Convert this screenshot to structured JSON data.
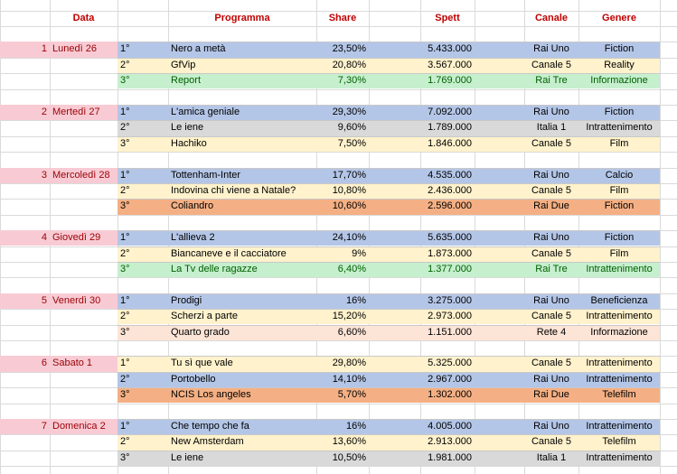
{
  "header": [
    "Data",
    "Programma",
    "Share",
    "Spett",
    "Canale",
    "Genere"
  ],
  "days": [
    {
      "num": "1",
      "day": "Lunedì 26",
      "rows": [
        {
          "rank": "1°",
          "program": "Nero a metà",
          "share": "23,50%",
          "spett": "5.433.000",
          "channel": "Rai Uno",
          "genre": "Fiction",
          "fill": "#b4c6e7",
          "ink": "#000000"
        },
        {
          "rank": "2°",
          "program": "GfVip",
          "share": "20,80%",
          "spett": "3.567.000",
          "channel": "Canale 5",
          "genre": "Reality",
          "fill": "#fff2cc",
          "ink": "#000000"
        },
        {
          "rank": "3°",
          "program": "Report",
          "share": "7,30%",
          "spett": "1.769.000",
          "channel": "Rai Tre",
          "genre": "Informazione",
          "fill": "#c6efce",
          "ink": "#006100"
        }
      ]
    },
    {
      "num": "2",
      "day": "Mertedì 27",
      "rows": [
        {
          "rank": "1°",
          "program": "L'amica geniale",
          "share": "29,30%",
          "spett": "7.092.000",
          "channel": "Rai Uno",
          "genre": "Fiction",
          "fill": "#b4c6e7",
          "ink": "#000000"
        },
        {
          "rank": "2°",
          "program": "Le iene",
          "share": "9,60%",
          "spett": "1.789.000",
          "channel": "Italia 1",
          "genre": "Intrattenimento",
          "fill": "#d9d9d9",
          "ink": "#000000"
        },
        {
          "rank": "3°",
          "program": "Hachiko",
          "share": "7,50%",
          "spett": "1.846.000",
          "channel": "Canale 5",
          "genre": "Film",
          "fill": "#fff2cc",
          "ink": "#000000"
        }
      ]
    },
    {
      "num": "3",
      "day": "Mercoledì 28",
      "rows": [
        {
          "rank": "1°",
          "program": "Tottenham-Inter",
          "share": "17,70%",
          "spett": "4.535.000",
          "channel": "Rai Uno",
          "genre": "Calcio",
          "fill": "#b4c6e7",
          "ink": "#000000"
        },
        {
          "rank": "2°",
          "program": "Indovina chi viene a Natale?",
          "share": "10,80%",
          "spett": "2.436.000",
          "channel": "Canale 5",
          "genre": "Film",
          "fill": "#fff2cc",
          "ink": "#000000"
        },
        {
          "rank": "3°",
          "program": "Coliandro",
          "share": "10,60%",
          "spett": "2.596.000",
          "channel": "Rai Due",
          "genre": "Fiction",
          "fill": "#f4b084",
          "ink": "#000000"
        }
      ]
    },
    {
      "num": "4",
      "day": "Giovedì 29",
      "rows": [
        {
          "rank": "1°",
          "program": "L'allieva 2",
          "share": "24,10%",
          "spett": "5.635.000",
          "channel": "Rai Uno",
          "genre": "Fiction",
          "fill": "#b4c6e7",
          "ink": "#000000"
        },
        {
          "rank": "2°",
          "program": "Biancaneve e il cacciatore",
          "share": "9%",
          "spett": "1.873.000",
          "channel": "Canale 5",
          "genre": "Film",
          "fill": "#fff2cc",
          "ink": "#000000"
        },
        {
          "rank": "3°",
          "program": "La Tv delle ragazze",
          "share": "6,40%",
          "spett": "1.377.000",
          "channel": "Rai Tre",
          "genre": "Intrattenimento",
          "fill": "#c6efce",
          "ink": "#006100"
        }
      ]
    },
    {
      "num": "5",
      "day": "Venerdì 30",
      "rows": [
        {
          "rank": "1°",
          "program": "Prodigi",
          "share": "16%",
          "spett": "3.275.000",
          "channel": "Rai Uno",
          "genre": "Beneficienza",
          "fill": "#b4c6e7",
          "ink": "#000000"
        },
        {
          "rank": "2°",
          "program": "Scherzi a parte",
          "share": "15,20%",
          "spett": "2.973.000",
          "channel": "Canale 5",
          "genre": "Intrattenimento",
          "fill": "#fff2cc",
          "ink": "#000000"
        },
        {
          "rank": "3°",
          "program": "Quarto grado",
          "share": "6,60%",
          "spett": "1.151.000",
          "channel": "Rete 4",
          "genre": "Informazione",
          "fill": "#fce4d6",
          "ink": "#000000"
        }
      ]
    },
    {
      "num": "6",
      "day": "Sabato 1",
      "rows": [
        {
          "rank": "1°",
          "program": "Tu sì que vale",
          "share": "29,80%",
          "spett": "5.325.000",
          "channel": "Canale 5",
          "genre": "Intrattenimento",
          "fill": "#fff2cc",
          "ink": "#000000"
        },
        {
          "rank": "2°",
          "program": "Portobello",
          "share": "14,10%",
          "spett": "2.967.000",
          "channel": "Rai Uno",
          "genre": "Intrattenimento",
          "fill": "#b4c6e7",
          "ink": "#000000"
        },
        {
          "rank": "3°",
          "program": "NCIS Los angeles",
          "share": "5,70%",
          "spett": "1.302.000",
          "channel": "Rai Due",
          "genre": "Telefilm",
          "fill": "#f4b084",
          "ink": "#000000"
        }
      ]
    },
    {
      "num": "7",
      "day": "Domenica 2",
      "rows": [
        {
          "rank": "1°",
          "program": "Che tempo che fa",
          "share": "16%",
          "spett": "4.005.000",
          "channel": "Rai Uno",
          "genre": "Intrattenimento",
          "fill": "#b4c6e7",
          "ink": "#000000"
        },
        {
          "rank": "2°",
          "program": "New Amsterdam",
          "share": "13,60%",
          "spett": "2.913.000",
          "channel": "Canale 5",
          "genre": "Telefilm",
          "fill": "#fff2cc",
          "ink": "#000000"
        },
        {
          "rank": "3°",
          "program": "Le iene",
          "share": "10,50%",
          "spett": "1.981.000",
          "channel": "Italia 1",
          "genre": "Intrattenimento",
          "fill": "#d9d9d9",
          "ink": "#000000"
        }
      ]
    }
  ]
}
